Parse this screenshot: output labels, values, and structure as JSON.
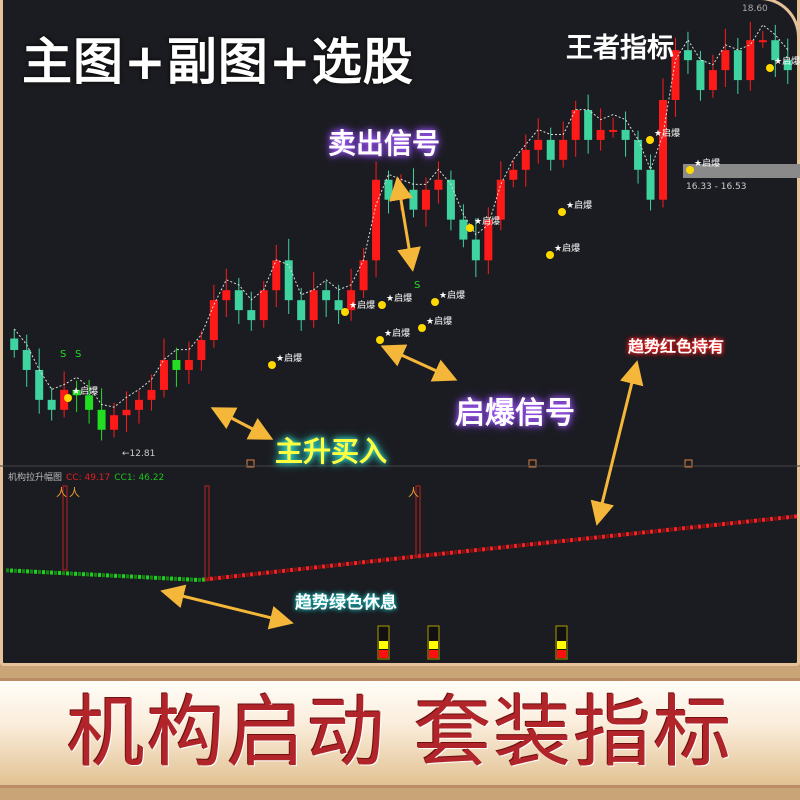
{
  "header": {
    "title": "主图+副图+选股",
    "brand": "王者指标"
  },
  "chart_data": {
    "type": "candlestick",
    "closes": [
      14.14,
      13.88,
      13.49,
      13.36,
      13.62,
      13.55,
      13.36,
      13.1,
      13.29,
      13.36,
      13.49,
      13.62,
      14.01,
      13.88,
      14.01,
      14.27,
      14.79,
      14.92,
      14.66,
      14.53,
      14.92,
      15.31,
      14.79,
      14.53,
      14.92,
      14.79,
      14.66,
      14.92,
      15.31,
      16.36,
      16.1,
      16.23,
      15.97,
      16.23,
      16.36,
      15.84,
      15.58,
      15.31,
      15.84,
      16.36,
      16.49,
      16.75,
      16.88,
      16.62,
      16.88,
      17.27,
      16.88,
      17.01,
      17.01,
      16.88,
      16.49,
      16.1,
      17.4,
      18.05,
      17.92,
      17.53,
      17.79,
      18.05,
      17.66,
      18.18,
      18.18,
      17.92,
      17.79
    ],
    "price_range": [
      12.81,
      18.6
    ],
    "labels": {
      "high": "18.60",
      "low": "←12.81",
      "band": "16.33 - 16.53",
      "signal": "启爆",
      "sell_mark": "S"
    },
    "colors": {
      "up": "#ff1a1a",
      "down": "#3fd3a0",
      "ma": "#dddddd"
    }
  },
  "subchart": {
    "name": "机构拉升幅图",
    "cc_label": "CC: 49.17",
    "cc1_label": "CC1: 46.22",
    "trend_up_color": "#ff2020",
    "trend_down_color": "#20d020"
  },
  "annotations": {
    "sell": "卖出信号",
    "burst": "启爆信号",
    "buy": "主升买入",
    "hold": "趋势红色持有",
    "rest": "趋势绿色休息"
  },
  "banner": {
    "text": "机构启动 套装指标"
  }
}
